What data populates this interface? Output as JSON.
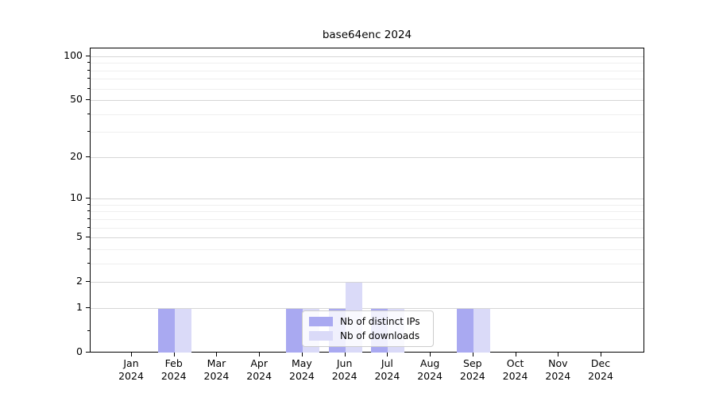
{
  "chart_data": {
    "type": "bar",
    "title": "base64enc 2024",
    "year_label": "2024",
    "categories": [
      "Jan",
      "Feb",
      "Mar",
      "Apr",
      "May",
      "Jun",
      "Jul",
      "Aug",
      "Sep",
      "Oct",
      "Nov",
      "Dec"
    ],
    "series": [
      {
        "name": "Nb of distinct IPs",
        "color": "#a9a9f1",
        "values": [
          0,
          1,
          0,
          0,
          1,
          1,
          1,
          0,
          1,
          0,
          0,
          0
        ]
      },
      {
        "name": "Nb of downloads",
        "color": "#dadaf8",
        "values": [
          0,
          1,
          0,
          0,
          1,
          2,
          1,
          0,
          1,
          0,
          0,
          0
        ]
      }
    ],
    "yscale": "log1p",
    "ylim": [
      0,
      115
    ],
    "y_major_ticks": [
      0,
      1,
      2,
      5,
      10,
      20,
      50,
      100
    ],
    "y_minor_ticks": [
      0.4,
      3,
      4,
      6,
      7,
      8,
      9,
      30,
      40,
      60,
      70,
      80,
      90
    ],
    "grid": "horizontal",
    "legend_position": "lower center"
  }
}
